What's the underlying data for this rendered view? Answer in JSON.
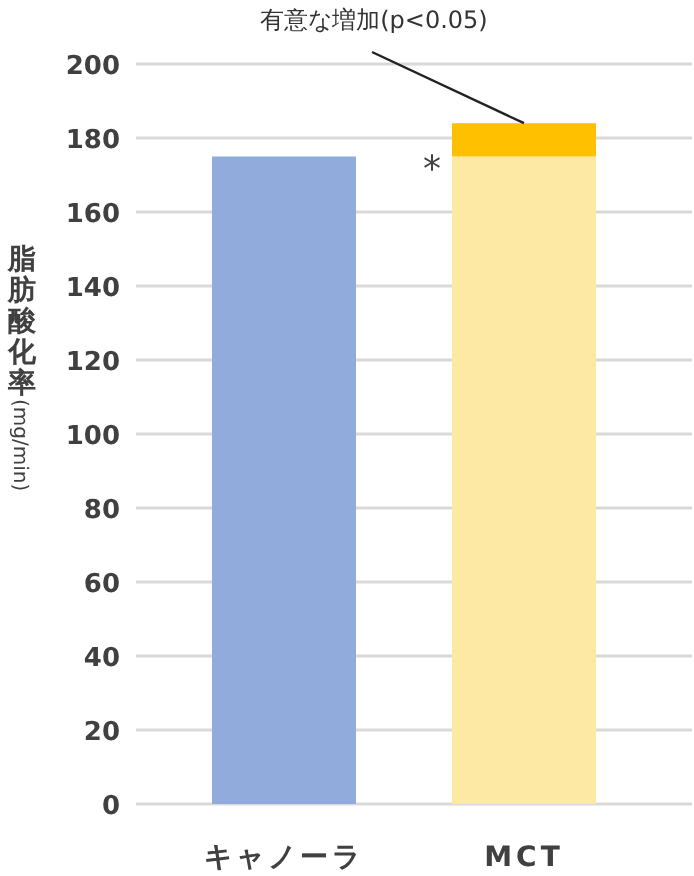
{
  "chart_data": {
    "type": "bar",
    "stacked": true,
    "categories": [
      "キャノーラ",
      "MCT"
    ],
    "series": [
      {
        "colors": [
          "#91abdd",
          "#fde9a3"
        ],
        "values": [
          175,
          175
        ]
      },
      {
        "color": "#ffc000",
        "values": [
          null,
          9
        ]
      }
    ],
    "ylabel": "脂肪酸化率(mg/min)",
    "ylim": [
      0,
      200
    ],
    "yticks": [
      0,
      20,
      40,
      60,
      80,
      100,
      120,
      140,
      160,
      180,
      200
    ],
    "grid": "y",
    "annotations": [
      {
        "text": "*",
        "x": "MCT",
        "y": 175
      },
      {
        "text": "有意な増加(p<0.05)",
        "x": "MCT",
        "y": 184
      }
    ]
  }
}
